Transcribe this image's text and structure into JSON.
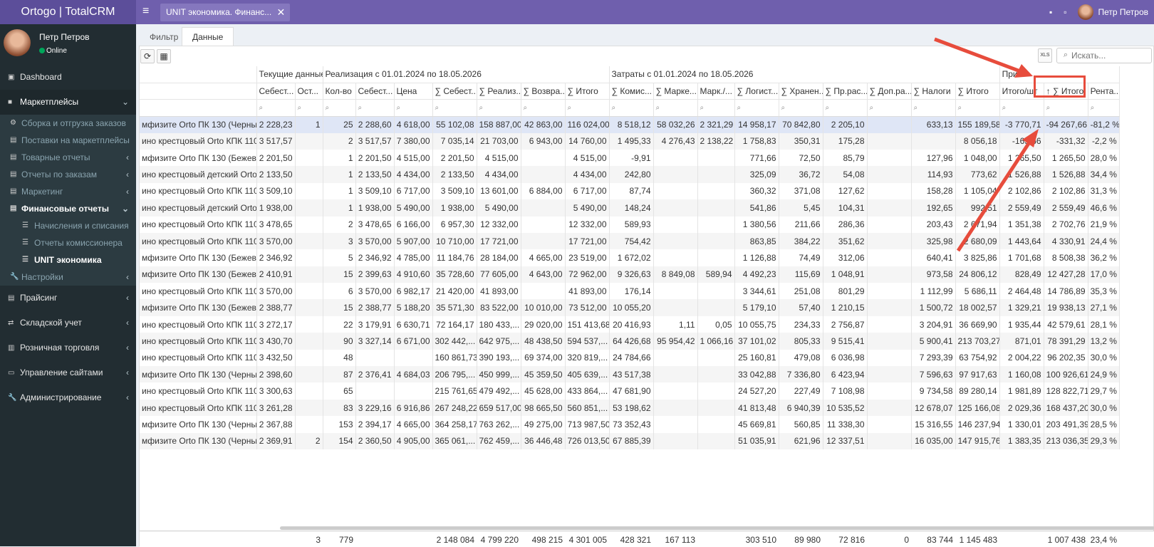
{
  "app": {
    "logo": "Ortogo | TotalCRM",
    "tab": "UNIT экономика. Финанс...",
    "tab_close": "✕",
    "user": "Петр Петров"
  },
  "sidebar": {
    "user": "Петр Петров",
    "status": "Online",
    "items": [
      {
        "label": "Dashboard",
        "icon": "dashboard-icon"
      },
      {
        "label": "Маркетплейсы",
        "icon": "briefcase-icon"
      },
      {
        "label": "Сборка и отгрузка заказов"
      },
      {
        "label": "Поставки на маркетплейсы"
      },
      {
        "label": "Товарные отчеты"
      },
      {
        "label": "Отчеты по заказам"
      },
      {
        "label": "Маркетинг"
      },
      {
        "label": "Финансовые отчеты"
      },
      {
        "label": "Начисления и списания"
      },
      {
        "label": "Отчеты комиссионера"
      },
      {
        "label": "UNIT экономика"
      },
      {
        "label": "Настройки"
      },
      {
        "label": "Прайсинг"
      },
      {
        "label": "Складской учет"
      },
      {
        "label": "Розничная торговля"
      },
      {
        "label": "Управление сайтами"
      },
      {
        "label": "Администрирование"
      }
    ]
  },
  "tabs": [
    "Фильтр",
    "Данные"
  ],
  "search_placeholder": "Искать...",
  "bands": [
    "Текущие данные",
    "Реализация с 01.01.2024 по 18.05.2026",
    "Затраты с 01.01.2024 по 18.05.2026",
    "При..."
  ],
  "headers": [
    "",
    "Себест...",
    "Ост...",
    "Кол-во",
    "Себест...",
    "Цена",
    "∑ Себест...",
    "∑ Реализ...",
    "∑ Возвра...",
    "∑ Итого",
    "∑ Комис...",
    "∑ Марке...",
    "Марк./...",
    "∑ Логист...",
    "∑ Хранен...",
    "∑ Пр.рас...",
    "∑ Доп.ра...",
    "∑ Налоги",
    "∑ Итого",
    "Итого/шт",
    "↑ ∑ Итого",
    "Рента..."
  ],
  "rows": [
    [
      "мфизите Orto ПК 130 (Черный...",
      "2 228,23",
      "1",
      "25",
      "2 288,60",
      "4 618,00",
      "55 102,08",
      "158 887,00",
      "42 863,00",
      "116 024,00",
      "8 518,12",
      "58 032,26",
      "2 321,29",
      "14 958,17",
      "70 842,80",
      "2 205,10",
      "",
      "633,13",
      "155 189,58",
      "-3 770,71",
      "-94 267,66",
      "-81,2 %"
    ],
    [
      "ино крестцовый Orto КПК 110 ...",
      "3 517,57",
      "",
      "2",
      "3 517,57",
      "7 380,00",
      "7 035,14",
      "21 703,00",
      "6 943,00",
      "14 760,00",
      "1 495,33",
      "4 276,43",
      "2 138,22",
      "1 758,83",
      "350,31",
      "175,28",
      "",
      "",
      "8 056,18",
      "-165,66",
      "-331,32",
      "-2,2 %"
    ],
    [
      "мфизите Orto ПК 130 (Бежевы...",
      "2 201,50",
      "",
      "1",
      "2 201,50",
      "4 515,00",
      "2 201,50",
      "4 515,00",
      "",
      "4 515,00",
      "-9,91",
      "",
      "",
      "771,66",
      "72,50",
      "85,79",
      "",
      "127,96",
      "1 048,00",
      "1 265,50",
      "1 265,50",
      "28,0 %"
    ],
    [
      "ино крестцовый детский Orto ...",
      "2 133,50",
      "",
      "1",
      "2 133,50",
      "4 434,00",
      "2 133,50",
      "4 434,00",
      "",
      "4 434,00",
      "242,80",
      "",
      "",
      "325,09",
      "36,72",
      "54,08",
      "",
      "114,93",
      "773,62",
      "1 526,88",
      "1 526,88",
      "34,4 %"
    ],
    [
      "ино крестцовый Orto КПК 110 ...",
      "3 509,10",
      "",
      "1",
      "3 509,10",
      "6 717,00",
      "3 509,10",
      "13 601,00",
      "6 884,00",
      "6 717,00",
      "87,74",
      "",
      "",
      "360,32",
      "371,08",
      "127,62",
      "",
      "158,28",
      "1 105,04",
      "2 102,86",
      "2 102,86",
      "31,3 %"
    ],
    [
      "ино крестцовый детский Orto ...",
      "1 938,00",
      "",
      "1",
      "1 938,00",
      "5 490,00",
      "1 938,00",
      "5 490,00",
      "",
      "5 490,00",
      "148,24",
      "",
      "",
      "541,86",
      "5,45",
      "104,31",
      "",
      "192,65",
      "992,51",
      "2 559,49",
      "2 559,49",
      "46,6 %"
    ],
    [
      "ино крестцовый Orto КПК 110 ...",
      "3 478,65",
      "",
      "2",
      "3 478,65",
      "6 166,00",
      "6 957,30",
      "12 332,00",
      "",
      "12 332,00",
      "589,93",
      "",
      "",
      "1 380,56",
      "211,66",
      "286,36",
      "",
      "203,43",
      "2 671,94",
      "1 351,38",
      "2 702,76",
      "21,9 %"
    ],
    [
      "ино крестцовый Orto КПК 110 ...",
      "3 570,00",
      "",
      "3",
      "3 570,00",
      "5 907,00",
      "10 710,00",
      "17 721,00",
      "",
      "17 721,00",
      "754,42",
      "",
      "",
      "863,85",
      "384,22",
      "351,62",
      "",
      "325,98",
      "2 680,09",
      "1 443,64",
      "4 330,91",
      "24,4 %"
    ],
    [
      "мфизите Orto ПК 130 (Бежевы...",
      "2 346,92",
      "",
      "5",
      "2 346,92",
      "4 785,00",
      "11 184,76",
      "28 184,00",
      "4 665,00",
      "23 519,00",
      "1 672,02",
      "",
      "",
      "1 126,88",
      "74,49",
      "312,06",
      "",
      "640,41",
      "3 825,86",
      "1 701,68",
      "8 508,38",
      "36,2 %"
    ],
    [
      "мфизите Orto ПК 130 (Бежевы...",
      "2 410,91",
      "",
      "15",
      "2 399,63",
      "4 910,60",
      "35 728,60",
      "77 605,00",
      "4 643,00",
      "72 962,00",
      "9 326,63",
      "8 849,08",
      "589,94",
      "4 492,23",
      "115,69",
      "1 048,91",
      "",
      "973,58",
      "24 806,12",
      "828,49",
      "12 427,28",
      "17,0 %"
    ],
    [
      "ино крестцовый Orto КПК 110 ...",
      "3 570,00",
      "",
      "6",
      "3 570,00",
      "6 982,17",
      "21 420,00",
      "41 893,00",
      "",
      "41 893,00",
      "176,14",
      "",
      "",
      "3 344,61",
      "251,08",
      "801,29",
      "",
      "1 112,99",
      "5 686,11",
      "2 464,48",
      "14 786,89",
      "35,3 %"
    ],
    [
      "мфизите Orto ПК 130 (Бежевы...",
      "2 388,77",
      "",
      "15",
      "2 388,77",
      "5 188,20",
      "35 571,30",
      "83 522,00",
      "10 010,00",
      "73 512,00",
      "10 055,20",
      "",
      "",
      "5 179,10",
      "57,40",
      "1 210,15",
      "",
      "1 500,72",
      "18 002,57",
      "1 329,21",
      "19 938,13",
      "27,1 %"
    ],
    [
      "ино крестцовый Orto КПК 110 ...",
      "3 272,17",
      "",
      "22",
      "3 179,91",
      "6 630,71",
      "72 164,17",
      "180 433,...",
      "29 020,00",
      "151 413,68",
      "20 416,93",
      "1,11",
      "0,05",
      "10 055,75",
      "234,33",
      "2 756,87",
      "",
      "3 204,91",
      "36 669,90",
      "1 935,44",
      "42 579,61",
      "28,1 %"
    ],
    [
      "ино крестцовый Orto КПК 110 ...",
      "3 430,70",
      "",
      "90",
      "3 327,14",
      "6 671,00",
      "302 442,...",
      "642 975,...",
      "48 438,50",
      "594 537,...",
      "64 426,68",
      "95 954,42",
      "1 066,16",
      "37 101,02",
      "805,33",
      "9 515,41",
      "",
      "5 900,41",
      "213 703,27",
      "871,01",
      "78 391,29",
      "13,2 %"
    ],
    [
      "ино крестцовый Orto КПК 110 ...",
      "3 432,50",
      "",
      "48",
      "",
      "",
      "160 861,73",
      "390 193,...",
      "69 374,00",
      "320 819,...",
      "24 784,66",
      "",
      "",
      "25 160,81",
      "479,08",
      "6 036,98",
      "",
      "7 293,39",
      "63 754,92",
      "2 004,22",
      "96 202,35",
      "30,0 %"
    ],
    [
      "мфизите Orto ПК 130 (Черный...",
      "2 398,60",
      "",
      "87",
      "2 376,41",
      "4 684,03",
      "206 795,...",
      "450 999,...",
      "45 359,50",
      "405 639,...",
      "43 517,38",
      "",
      "",
      "33 042,88",
      "7 336,80",
      "6 423,94",
      "",
      "7 596,63",
      "97 917,63",
      "1 160,08",
      "100 926,61",
      "24,9 %"
    ],
    [
      "ино крестцовый Orto КПК 110 ...",
      "3 300,63",
      "",
      "65",
      "",
      "",
      "215 761,65",
      "479 492,...",
      "45 628,00",
      "433 864,...",
      "47 681,90",
      "",
      "",
      "24 527,20",
      "227,49",
      "7 108,98",
      "",
      "9 734,58",
      "89 280,14",
      "1 981,89",
      "128 822,71",
      "29,7 %"
    ],
    [
      "ино крестцовый Orto КПК 110 ...",
      "3 261,28",
      "",
      "83",
      "3 229,16",
      "6 916,86",
      "267 248,22",
      "659 517,00",
      "98 665,50",
      "560 851,...",
      "53 198,62",
      "",
      "",
      "41 813,48",
      "6 940,39",
      "10 535,52",
      "",
      "12 678,07",
      "125 166,08",
      "2 029,36",
      "168 437,20",
      "30,0 %"
    ],
    [
      "мфизите Orto ПК 130 (Черный...",
      "2 367,88",
      "",
      "153",
      "2 394,17",
      "4 665,00",
      "364 258,17",
      "763 262,...",
      "49 275,00",
      "713 987,50",
      "73 352,43",
      "",
      "",
      "45 669,81",
      "560,85",
      "11 338,30",
      "",
      "15 316,55",
      "146 237,94",
      "1 330,01",
      "203 491,39",
      "28,5 %"
    ],
    [
      "мфизите Orto ПК 130 (Черный...",
      "2 369,91",
      "2",
      "154",
      "2 360,50",
      "4 905,00",
      "365 061,...",
      "762 459,...",
      "36 446,48",
      "726 013,50",
      "67 885,39",
      "",
      "",
      "51 035,91",
      "621,96",
      "12 337,51",
      "",
      "16 035,00",
      "147 915,76",
      "1 383,35",
      "213 036,35",
      "29,3 %"
    ]
  ],
  "footer": [
    "",
    "",
    "3",
    "779",
    "",
    "",
    "2 148 084",
    "4 799 220",
    "498 215",
    "4 301 005",
    "428 321",
    "167 113",
    "",
    "303 510",
    "89 980",
    "72 816",
    "0",
    "83 744",
    "1 145 483",
    "",
    "1 007 438",
    "23,4 %"
  ]
}
